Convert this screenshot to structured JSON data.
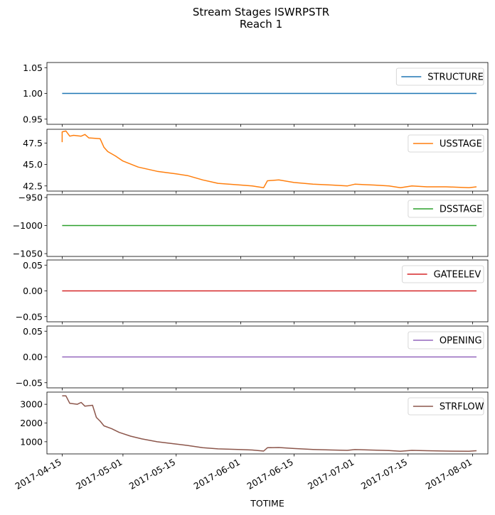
{
  "chart_data": {
    "type": "line",
    "title": "Stream Stages ISWRPSTR",
    "subtitle": "Reach 1",
    "xlabel": "TOTIME",
    "x_range": [
      "2017-04-11",
      "2017-08-05"
    ],
    "x_ticks": [
      "2017-04-15",
      "2017-05-01",
      "2017-05-15",
      "2017-06-01",
      "2017-06-15",
      "2017-07-01",
      "2017-07-15",
      "2017-08-01"
    ],
    "legend_position": "upper right",
    "grid": false,
    "panels": [
      {
        "name": "STRUCTURE",
        "color": "#1f77b4",
        "ylim": [
          0.94,
          1.06
        ],
        "y_ticks": [
          0.95,
          1.0,
          1.05
        ],
        "y_tick_labels": [
          "0.95",
          "1.00",
          "1.05"
        ],
        "x": [
          "2017-04-15",
          "2017-08-02"
        ],
        "y": [
          1.0,
          1.0
        ]
      },
      {
        "name": "USSTAGE",
        "color": "#ff7f0e",
        "ylim": [
          41.9,
          49.1
        ],
        "y_ticks": [
          42.5,
          45.0,
          47.5
        ],
        "y_tick_labels": [
          "42.5",
          "45.0",
          "47.5"
        ],
        "x": [
          "2017-04-15",
          "2017-04-15",
          "2017-04-16",
          "2017-04-17",
          "2017-04-18",
          "2017-04-20",
          "2017-04-21",
          "2017-04-22",
          "2017-04-25",
          "2017-04-26",
          "2017-04-27",
          "2017-04-29",
          "2017-05-01",
          "2017-05-05",
          "2017-05-10",
          "2017-05-15",
          "2017-05-18",
          "2017-05-22",
          "2017-05-26",
          "2017-06-01",
          "2017-06-04",
          "2017-06-07",
          "2017-06-08",
          "2017-06-11",
          "2017-06-15",
          "2017-06-20",
          "2017-06-25",
          "2017-06-29",
          "2017-07-01",
          "2017-07-06",
          "2017-07-10",
          "2017-07-13",
          "2017-07-16",
          "2017-07-20",
          "2017-07-25",
          "2017-07-31",
          "2017-08-02"
        ],
        "y": [
          47.6,
          48.8,
          48.9,
          48.3,
          48.4,
          48.3,
          48.5,
          48.1,
          48.0,
          47.0,
          46.5,
          46.0,
          45.4,
          44.7,
          44.2,
          43.9,
          43.7,
          43.2,
          42.8,
          42.6,
          42.5,
          42.3,
          43.1,
          43.2,
          42.9,
          42.7,
          42.6,
          42.5,
          42.7,
          42.6,
          42.5,
          42.3,
          42.5,
          42.4,
          42.4,
          42.3,
          42.4
        ]
      },
      {
        "name": "DSSTAGE",
        "color": "#2ca02c",
        "ylim": [
          -1055,
          -945
        ],
        "y_ticks": [
          -1050,
          -1000,
          -950
        ],
        "y_tick_labels": [
          "−1050",
          "−1000",
          "−950"
        ],
        "x": [
          "2017-04-15",
          "2017-08-02"
        ],
        "y": [
          -1000,
          -1000
        ]
      },
      {
        "name": "GATEELEV",
        "color": "#d62728",
        "ylim": [
          -0.06,
          0.06
        ],
        "y_ticks": [
          -0.05,
          0.0,
          0.05
        ],
        "y_tick_labels": [
          "−0.05",
          "0.00",
          "0.05"
        ],
        "x": [
          "2017-04-15",
          "2017-08-02"
        ],
        "y": [
          0,
          0
        ]
      },
      {
        "name": "OPENING",
        "color": "#9467bd",
        "ylim": [
          -0.06,
          0.06
        ],
        "y_ticks": [
          -0.05,
          0.0,
          0.05
        ],
        "y_tick_labels": [
          "−0.05",
          "0.00",
          "0.05"
        ],
        "x": [
          "2017-04-15",
          "2017-08-02"
        ],
        "y": [
          0,
          0
        ]
      },
      {
        "name": "STRFLOW",
        "color": "#8c564b",
        "ylim": [
          350,
          3650
        ],
        "y_ticks": [
          1000,
          2000,
          3000
        ],
        "y_tick_labels": [
          "1000",
          "2000",
          "3000"
        ],
        "x": [
          "2017-04-15",
          "2017-04-16",
          "2017-04-17",
          "2017-04-19",
          "2017-04-20",
          "2017-04-21",
          "2017-04-23",
          "2017-04-24",
          "2017-04-25",
          "2017-04-26",
          "2017-04-28",
          "2017-04-30",
          "2017-05-03",
          "2017-05-06",
          "2017-05-10",
          "2017-05-14",
          "2017-05-18",
          "2017-05-22",
          "2017-05-26",
          "2017-06-01",
          "2017-06-04",
          "2017-06-07",
          "2017-06-08",
          "2017-06-11",
          "2017-06-15",
          "2017-06-20",
          "2017-06-25",
          "2017-06-29",
          "2017-07-01",
          "2017-07-05",
          "2017-07-10",
          "2017-07-13",
          "2017-07-16",
          "2017-07-20",
          "2017-07-25",
          "2017-07-31",
          "2017-08-02"
        ],
        "y": [
          3450,
          3450,
          3050,
          3000,
          3100,
          2900,
          2950,
          2300,
          2100,
          1850,
          1700,
          1500,
          1300,
          1150,
          1000,
          900,
          800,
          680,
          620,
          580,
          560,
          500,
          680,
          690,
          640,
          590,
          560,
          540,
          580,
          560,
          530,
          490,
          540,
          520,
          500,
          490,
          520
        ]
      }
    ]
  }
}
